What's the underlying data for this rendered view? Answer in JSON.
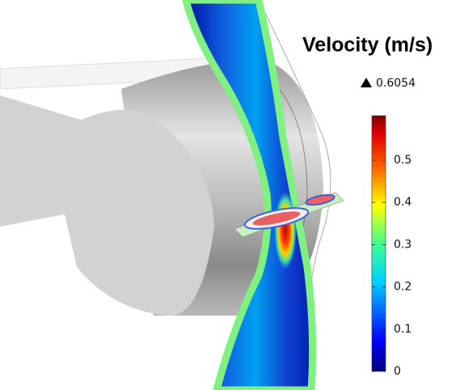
{
  "legend": {
    "title": "Velocity (m/s)",
    "max": 0.6054,
    "range": [
      0,
      0.6054
    ],
    "ticks": [
      0,
      0.1,
      0.2,
      0.3,
      0.4,
      0.5
    ]
  }
}
